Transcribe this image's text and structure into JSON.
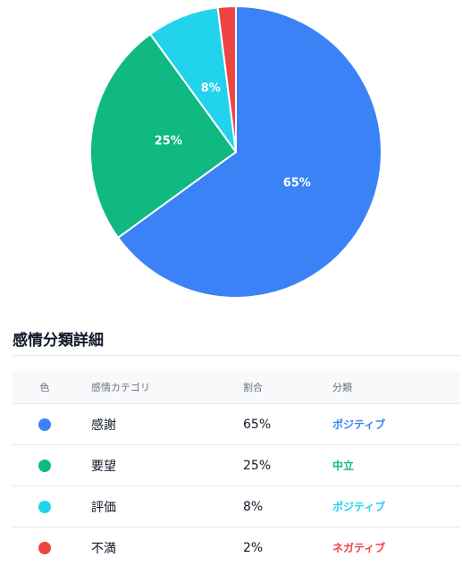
{
  "chart_data": {
    "type": "pie",
    "categories": [
      "感謝",
      "要望",
      "評価",
      "不満"
    ],
    "values": [
      65,
      25,
      8,
      2
    ],
    "colors": [
      "#3b82f6",
      "#10b981",
      "#22d3ee",
      "#ef4444"
    ],
    "slice_labels": [
      "65%",
      "25%",
      "8%",
      ""
    ]
  },
  "section": {
    "title": "感情分類詳細"
  },
  "table": {
    "headers": {
      "color": "色",
      "category": "感情カテゴリ",
      "ratio": "割合",
      "class": "分類"
    },
    "rows": [
      {
        "color": "#3b82f6",
        "category": "感謝",
        "ratio": "65%",
        "class": "ポジティブ",
        "class_color": "#3b82f6"
      },
      {
        "color": "#10b981",
        "category": "要望",
        "ratio": "25%",
        "class": "中立",
        "class_color": "#10b981"
      },
      {
        "color": "#22d3ee",
        "category": "評価",
        "ratio": "8%",
        "class": "ポジティブ",
        "class_color": "#22d3ee"
      },
      {
        "color": "#ef4444",
        "category": "不満",
        "ratio": "2%",
        "class": "ネガティブ",
        "class_color": "#ef4444"
      }
    ]
  }
}
